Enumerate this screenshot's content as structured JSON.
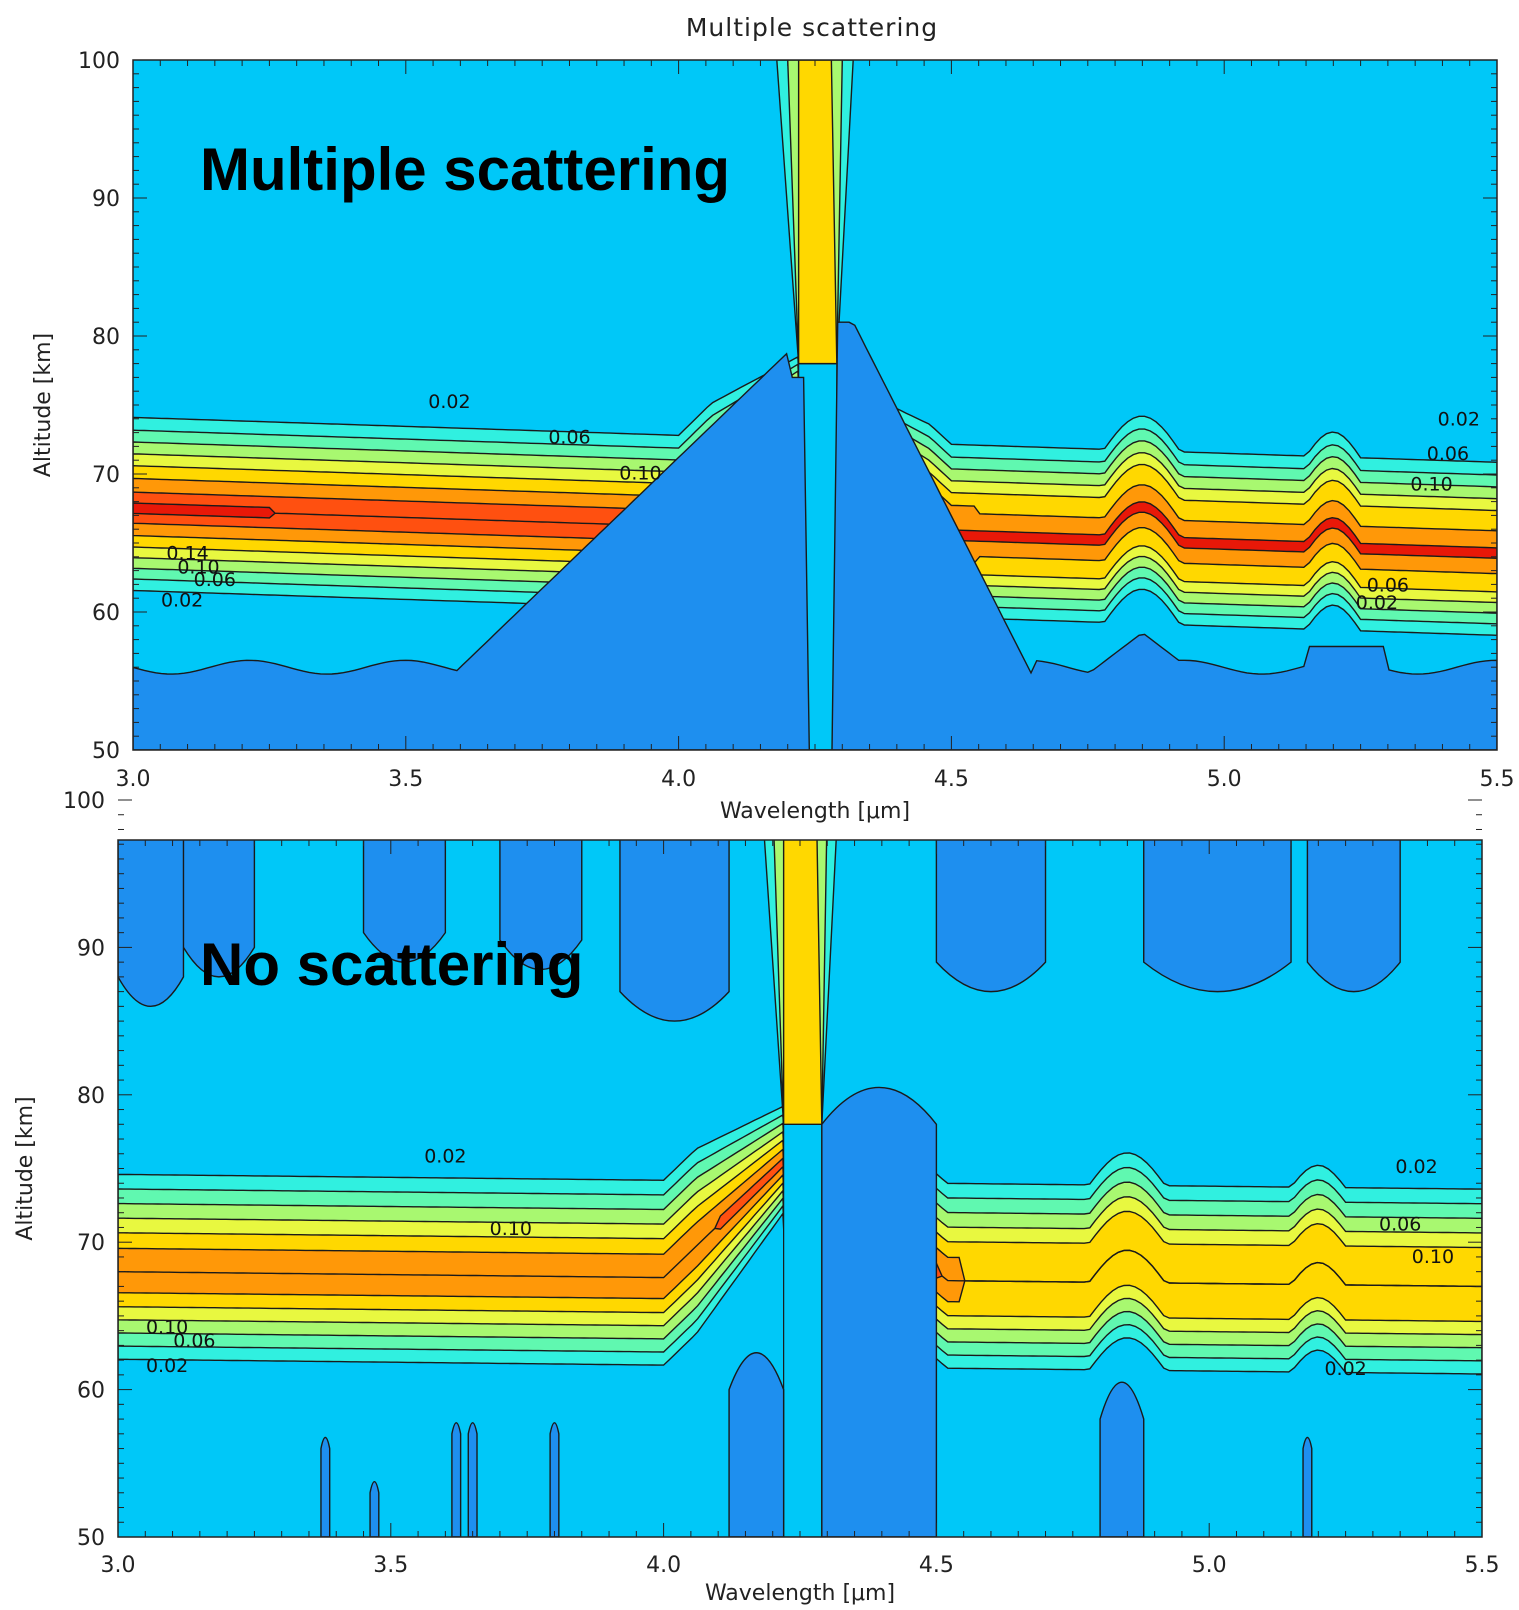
{
  "figure_title": "Multiple scattering",
  "chart_data": [
    {
      "type": "contour",
      "overlay_label": "Multiple scattering",
      "xlabel": "Wavelength [μm]",
      "ylabel": "Altitude [km]",
      "xlim": [
        3.0,
        5.5
      ],
      "ylim": [
        50,
        100
      ],
      "x_ticks": [
        "3.0",
        "3.5",
        "4.0",
        "4.5",
        "5.0",
        "5.5"
      ],
      "y_ticks": [
        "50",
        "60",
        "70",
        "80",
        "90",
        "100"
      ],
      "contour_levels": [
        "0.02",
        "0.04",
        "0.06",
        "0.08",
        "0.10",
        "0.12",
        "0.14"
      ],
      "contour_labels": [
        {
          "text": "0.02",
          "x": 3.58,
          "y": 74.8
        },
        {
          "text": "0.06",
          "x": 3.8,
          "y": 72.2
        },
        {
          "text": "0.10",
          "x": 3.93,
          "y": 69.6
        },
        {
          "text": "0.14",
          "x": 3.1,
          "y": 63.8
        },
        {
          "text": "0.10",
          "x": 3.12,
          "y": 62.8
        },
        {
          "text": "0.06",
          "x": 3.15,
          "y": 61.9
        },
        {
          "text": "0.02",
          "x": 3.09,
          "y": 60.4
        },
        {
          "text": "0.02",
          "x": 5.43,
          "y": 73.5
        },
        {
          "text": "0.06",
          "x": 5.41,
          "y": 71.0
        },
        {
          "text": "0.10",
          "x": 5.38,
          "y": 68.8
        },
        {
          "text": "0.06",
          "x": 5.3,
          "y": 61.5
        },
        {
          "text": "0.02",
          "x": 5.28,
          "y": 60.2
        }
      ],
      "colors": {
        "bg_low": "#1e8fef",
        "bg": "#00c8f8",
        "c02": "#30f0e0",
        "c04": "#60f8b0",
        "c06": "#a8f870",
        "c08": "#e8f840",
        "c10": "#ffd800",
        "c12": "#ff9808",
        "c14": "#ff5010",
        "c16": "#e81808"
      }
    },
    {
      "type": "contour",
      "overlay_label": "No scattering",
      "xlabel": "Wavelength [μm]",
      "ylabel": "Altitude [km]",
      "xlim": [
        3.0,
        5.5
      ],
      "ylim": [
        50,
        100
      ],
      "x_ticks": [
        "3.0",
        "3.5",
        "4.0",
        "4.5",
        "5.0",
        "5.5"
      ],
      "y_ticks": [
        "50",
        "60",
        "70",
        "80",
        "90",
        "100"
      ],
      "contour_levels": [
        "0.02",
        "0.04",
        "0.06",
        "0.08",
        "0.10",
        "0.12"
      ],
      "contour_labels": [
        {
          "text": "0.02",
          "x": 3.6,
          "y": 75.4
        },
        {
          "text": "0.10",
          "x": 3.72,
          "y": 70.5
        },
        {
          "text": "0.10",
          "x": 3.09,
          "y": 63.8
        },
        {
          "text": "0.06",
          "x": 3.14,
          "y": 62.9
        },
        {
          "text": "0.02",
          "x": 3.09,
          "y": 61.2
        },
        {
          "text": "0.02",
          "x": 5.38,
          "y": 74.7
        },
        {
          "text": "0.06",
          "x": 5.35,
          "y": 70.8
        },
        {
          "text": "0.10",
          "x": 5.41,
          "y": 68.6
        },
        {
          "text": "0.02",
          "x": 5.25,
          "y": 61.0
        }
      ],
      "colors": {
        "bg_low": "#1e8fef",
        "bg": "#00c8f8",
        "c02": "#30f0e0",
        "c04": "#60f8b0",
        "c06": "#a8f870",
        "c08": "#e8f840",
        "c10": "#ffd800",
        "c12": "#ff9808",
        "c14": "#ff5010"
      }
    }
  ]
}
